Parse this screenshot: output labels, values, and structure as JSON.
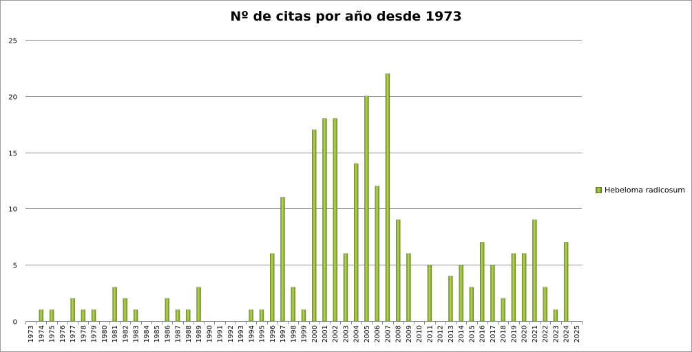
{
  "chart_data": {
    "type": "bar",
    "title": "Nº de citas por año desde 1973",
    "xlabel": "",
    "ylabel": "",
    "ylim": [
      0,
      25
    ],
    "yticks": [
      0,
      5,
      10,
      15,
      20,
      25
    ],
    "grid": true,
    "legend_position": "right",
    "categories": [
      "1973",
      "1974",
      "1975",
      "1976",
      "1977",
      "1978",
      "1979",
      "1980",
      "1981",
      "1982",
      "1983",
      "1984",
      "1985",
      "1986",
      "1987",
      "1988",
      "1989",
      "1990",
      "1991",
      "1992",
      "1993",
      "1994",
      "1995",
      "1996",
      "1997",
      "1998",
      "1999",
      "2000",
      "2001",
      "2002",
      "2003",
      "2004",
      "2005",
      "2006",
      "2007",
      "2008",
      "2009",
      "2010",
      "2011",
      "2012",
      "2013",
      "2014",
      "2015",
      "2016",
      "2017",
      "2018",
      "2019",
      "2020",
      "2021",
      "2022",
      "2023",
      "2024",
      "2025"
    ],
    "series": [
      {
        "name": "Hebeloma radicosum",
        "color": "#9bbb59",
        "values": [
          0,
          1,
          1,
          0,
          2,
          1,
          1,
          0,
          3,
          2,
          1,
          0,
          0,
          2,
          1,
          1,
          3,
          0,
          0,
          0,
          0,
          1,
          1,
          6,
          11,
          3,
          1,
          17,
          18,
          18,
          6,
          14,
          20,
          12,
          22,
          9,
          6,
          0,
          5,
          0,
          4,
          5,
          3,
          7,
          5,
          2,
          6,
          6,
          9,
          3,
          1,
          7,
          0
        ]
      }
    ]
  }
}
